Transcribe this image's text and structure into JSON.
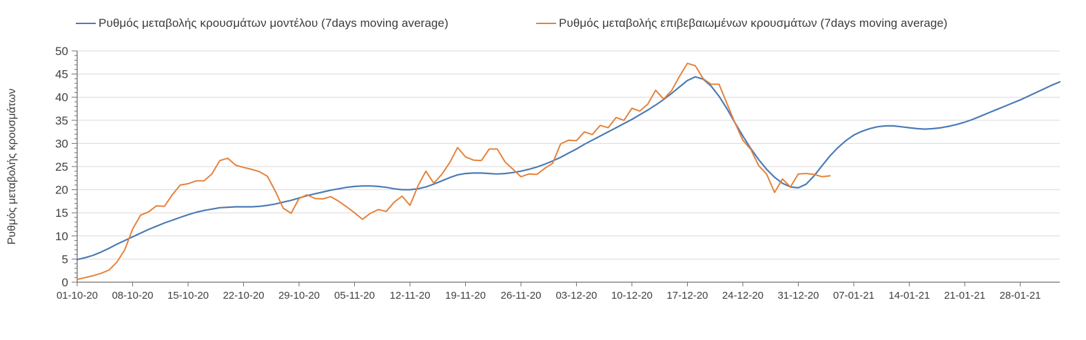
{
  "chart_data": {
    "type": "line",
    "title": "",
    "xlabel": "",
    "ylabel": "Ρυθμός μεταβολής κρουσμάτων",
    "ylim": [
      0,
      50
    ],
    "ytick_step": 5,
    "y_minor_tick_step": 1,
    "grid": "horizontal gridlines on",
    "legend_position": "top",
    "x_axis": {
      "unit": "daily dates (dd-mm-yy)",
      "start": "01-10-20",
      "tick_interval_days": 7,
      "tick_labels": [
        "01-10-20",
        "08-10-20",
        "15-10-20",
        "22-10-20",
        "29-10-20",
        "05-11-20",
        "12-11-20",
        "19-11-20",
        "26-11-20",
        "03-12-20",
        "10-12-20",
        "17-12-20",
        "24-12-20",
        "31-12-20",
        "07-01-21",
        "14-01-21",
        "21-01-21",
        "28-01-21"
      ]
    },
    "series": [
      {
        "name": "Ρυθμός μεταβολής κρουσμάτων μοντέλου (7days moving average)",
        "color": "#4a7bb5",
        "start_date": "01-10-20",
        "end_date": "02-02-21",
        "values": [
          4.9,
          5.3,
          5.8,
          6.5,
          7.3,
          8.2,
          9.0,
          9.8,
          10.6,
          11.4,
          12.1,
          12.8,
          13.4,
          14.0,
          14.6,
          15.1,
          15.5,
          15.8,
          16.1,
          16.2,
          16.3,
          16.3,
          16.3,
          16.4,
          16.6,
          16.9,
          17.3,
          17.7,
          18.2,
          18.7,
          19.1,
          19.5,
          19.9,
          20.2,
          20.5,
          20.7,
          20.8,
          20.8,
          20.7,
          20.5,
          20.2,
          20.0,
          20.0,
          20.2,
          20.6,
          21.2,
          21.9,
          22.6,
          23.2,
          23.5,
          23.6,
          23.6,
          23.5,
          23.4,
          23.5,
          23.7,
          24.0,
          24.4,
          24.9,
          25.5,
          26.2,
          27.0,
          27.9,
          28.8,
          29.8,
          30.7,
          31.6,
          32.5,
          33.4,
          34.3,
          35.2,
          36.2,
          37.2,
          38.3,
          39.5,
          40.8,
          42.2,
          43.6,
          44.4,
          43.9,
          42.4,
          40.2,
          37.5,
          34.5,
          31.6,
          28.9,
          26.5,
          24.4,
          22.7,
          21.4,
          20.6,
          20.4,
          21.2,
          23.0,
          25.2,
          27.3,
          29.1,
          30.6,
          31.8,
          32.6,
          33.2,
          33.6,
          33.8,
          33.8,
          33.6,
          33.4,
          33.2,
          33.1,
          33.2,
          33.4,
          33.7,
          34.1,
          34.6,
          35.2,
          35.9,
          36.6,
          37.3,
          38.0,
          38.7,
          39.4,
          40.2,
          41.0,
          41.8,
          42.6,
          43.3
        ]
      },
      {
        "name": "Ρυθμός μεταβολής επιβεβαιωμένων κρουσμάτων (7days moving average)",
        "color": "#e5813a",
        "start_date": "01-10-20",
        "end_date": "04-01-21",
        "values": [
          0.6,
          1.0,
          1.4,
          1.9,
          2.6,
          4.3,
          7.0,
          11.5,
          14.5,
          15.2,
          16.5,
          16.4,
          18.9,
          21.0,
          21.3,
          21.9,
          21.9,
          23.4,
          26.3,
          26.8,
          25.3,
          24.8,
          24.4,
          23.9,
          22.9,
          19.7,
          16.0,
          14.9,
          18.1,
          18.9,
          18.1,
          18.0,
          18.5,
          17.5,
          16.3,
          15.0,
          13.6,
          14.9,
          15.7,
          15.3,
          17.3,
          18.6,
          16.6,
          20.8,
          24.0,
          21.4,
          23.3,
          25.8,
          29.1,
          27.1,
          26.4,
          26.3,
          28.8,
          28.8,
          26.0,
          24.4,
          22.8,
          23.4,
          23.3,
          24.6,
          25.7,
          29.9,
          30.7,
          30.6,
          32.5,
          31.9,
          33.9,
          33.4,
          35.6,
          35.0,
          37.6,
          37.0,
          38.5,
          41.5,
          39.6,
          41.4,
          44.5,
          47.3,
          46.8,
          44.0,
          42.8,
          42.8,
          38.6,
          34.5,
          30.7,
          28.7,
          25.2,
          23.4,
          19.4,
          22.3,
          20.6,
          23.4,
          23.5,
          23.3,
          22.8,
          23.0
        ]
      }
    ],
    "colors": {
      "grid": "#d9d9d9",
      "axis": "#6e6e6e",
      "text": "#3f3f3f",
      "background": "#ffffff"
    }
  }
}
